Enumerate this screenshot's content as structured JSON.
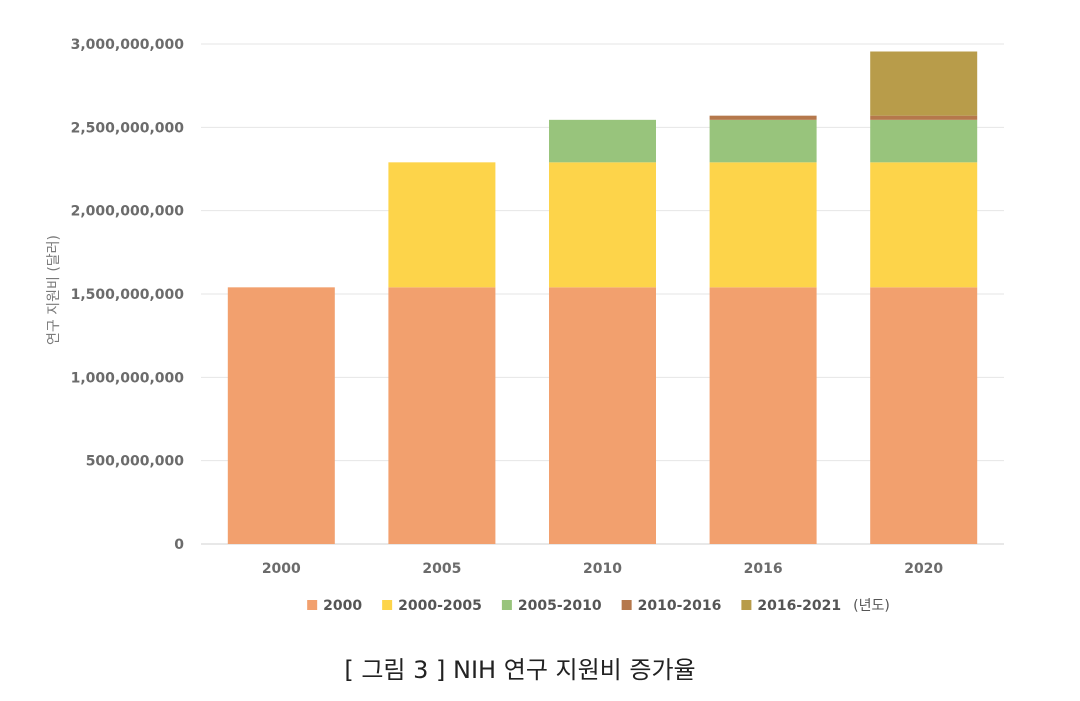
{
  "caption": "[ 그림 3 ] NIH 연구 지원비 증가율",
  "chart_data": {
    "type": "bar",
    "stacked": true,
    "ylabel": "연구 지원비 (달러)",
    "xlabel": "",
    "ylim": [
      0,
      3000000000
    ],
    "yticks": [
      0,
      500000000,
      1000000000,
      1500000000,
      2000000000,
      2500000000,
      3000000000
    ],
    "ytick_labels": [
      "0",
      "500,000,000",
      "1,000,000,000",
      "1,500,000,000",
      "2,000,000,000",
      "2,500,000,000",
      "3,000,000,000"
    ],
    "categories": [
      "2000",
      "2005",
      "2010",
      "2016",
      "2020"
    ],
    "series": [
      {
        "name": "2000",
        "color": "#F2A06E",
        "values": [
          1540000000,
          1540000000,
          1540000000,
          1540000000,
          1540000000
        ]
      },
      {
        "name": "2000-2005",
        "color": "#FDD44A",
        "values": [
          0,
          750000000,
          750000000,
          750000000,
          750000000
        ]
      },
      {
        "name": "2005-2010",
        "color": "#98C47C",
        "values": [
          0,
          0,
          255000000,
          255000000,
          255000000
        ]
      },
      {
        "name": "2010-2016",
        "color": "#B5784C",
        "values": [
          0,
          0,
          0,
          25000000,
          25000000
        ]
      },
      {
        "name": "2016-2021",
        "color": "#B89C4A",
        "values": [
          0,
          0,
          0,
          0,
          385000000
        ]
      }
    ],
    "legend_unit": "(년도)",
    "legend_position": "bottom",
    "grid": true
  }
}
